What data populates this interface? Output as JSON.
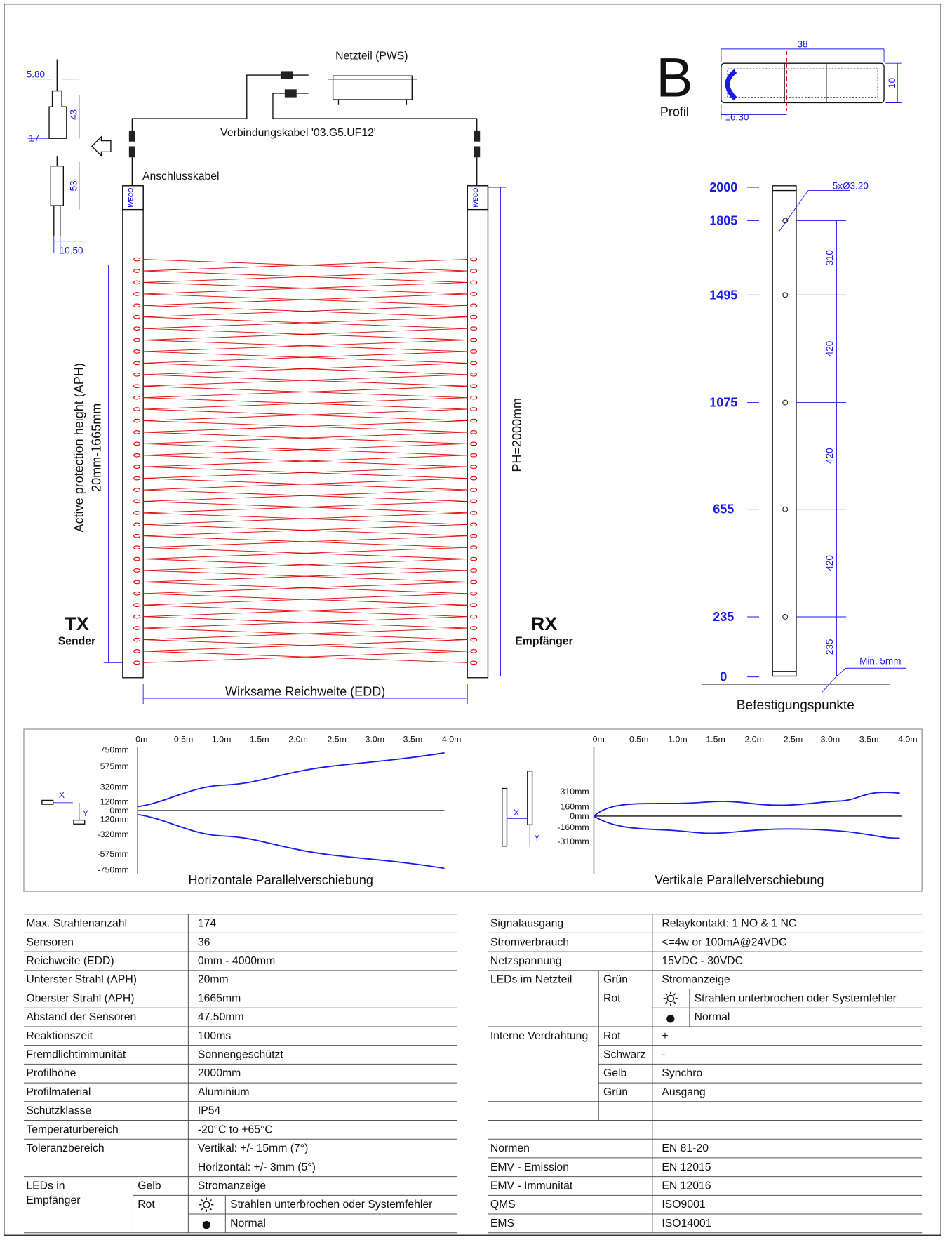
{
  "diagram": {
    "power_supply": "Netzteil (PWS)",
    "connection_cable": "Verbindungskabel '03.G5.UF12'",
    "connection_lead": "Anschlusskabel",
    "connector_dims": [
      "5.80",
      "43",
      "17",
      "53",
      "10.50"
    ],
    "logo": "WECO",
    "tx": {
      "label": "TX",
      "name": "Sender"
    },
    "rx": {
      "label": "RX",
      "name": "Empfänger"
    },
    "aph": [
      "Active protection height (APH)",
      "20mm-1665mm"
    ],
    "ph": "PH=2000mm",
    "edd": "Wirksame Reichweite (EDD)"
  },
  "profile": {
    "letter": "B",
    "label": "Profil",
    "width": "38",
    "height": "10",
    "offset": "16.30"
  },
  "mounting": {
    "heights": [
      "2000",
      "1805",
      "1495",
      "1075",
      "655",
      "235",
      "0"
    ],
    "spacings": [
      "310",
      "420",
      "420",
      "420",
      "235"
    ],
    "holes": "5xØ3.20",
    "min": "Min. 5mm",
    "title": "Befestigungspunkte"
  },
  "charts": [
    {
      "title": "Horizontale Parallelverschiebung",
      "x_labels": [
        "0m",
        "0.5m",
        "1.0m",
        "1.5m",
        "2.0m",
        "2.5m",
        "3.0m",
        "3.5m",
        "4.0m"
      ],
      "y_labels": [
        "750mm",
        "575mm",
        "320mm",
        "120mm",
        "0mm",
        "-120mm",
        "-320mm",
        "-575mm",
        "-750mm"
      ],
      "axes": [
        "X",
        "Y"
      ]
    },
    {
      "title": "Vertikale Parallelverschiebung",
      "x_labels": [
        "0m",
        "0.5m",
        "1.0m",
        "1.5m",
        "2.0m",
        "2.5m",
        "3.0m",
        "3.5m",
        "4.0m"
      ],
      "y_labels": [
        "310mm",
        "160mm",
        "0mm",
        "-160mm",
        "-310mm"
      ],
      "axes": [
        "X",
        "Y"
      ]
    }
  ],
  "left_table": {
    "rows": [
      [
        "Max. Strahlenanzahl",
        "174"
      ],
      [
        "Sensoren",
        "36"
      ],
      [
        "Reichweite (EDD)",
        "0mm - 4000mm"
      ],
      [
        "Unterster Strahl (APH)",
        "20mm"
      ],
      [
        "Oberster Strahl (APH)",
        "1665mm"
      ],
      [
        "Abstand der Sensoren",
        "47.50mm"
      ],
      [
        "Reaktionszeit",
        "100ms"
      ],
      [
        "Fremdlichtimmunität",
        "Sonnengeschützt"
      ],
      [
        "Profilhöhe",
        "2000mm"
      ],
      [
        "Profilmaterial",
        "Aluminium"
      ],
      [
        "Schutzklasse",
        "IP54"
      ],
      [
        "Temperaturbereich",
        "-20°C to +65°C"
      ]
    ],
    "tolerance": {
      "label": "Toleranzbereich",
      "values": [
        "Vertikal: +/- 15mm (7°)",
        "Horizontal: +/- 3mm (5°)"
      ]
    },
    "leds": {
      "label": [
        "LEDs in",
        "Empfänger"
      ],
      "yellow": [
        "Gelb",
        "Stromanzeige"
      ],
      "red": {
        "color": "Rot",
        "states": [
          "Strahlen unterbrochen oder Systemfehler",
          "Normal"
        ]
      }
    }
  },
  "right_table": {
    "rows": [
      [
        "Signalausgang",
        "Relaykontakt: 1 NO & 1 NC"
      ],
      [
        "Stromverbrauch",
        "<=4w or 100mA@24VDC"
      ],
      [
        "Netzspannung",
        "15VDC - 30VDC"
      ]
    ],
    "leds": {
      "label": "LEDs im Netzteil",
      "green": [
        "Grün",
        "Stromanzeige"
      ],
      "red": {
        "color": "Rot",
        "states": [
          "Strahlen unterbrochen oder Systemfehler",
          "Normal"
        ]
      }
    },
    "wiring": {
      "label": "Interne Verdrahtung",
      "wires": [
        [
          "Rot",
          "+"
        ],
        [
          "Schwarz",
          "-"
        ],
        [
          "Gelb",
          "Synchro"
        ],
        [
          "Grün",
          "Ausgang"
        ]
      ]
    },
    "standards": [
      [
        "Normen",
        "EN 81-20"
      ],
      [
        "EMV - Emission",
        "EN 12015"
      ],
      [
        "EMV - Immunität",
        "EN 12016"
      ],
      [
        "QMS",
        "ISO9001"
      ],
      [
        "EMS",
        "ISO14001"
      ]
    ]
  }
}
